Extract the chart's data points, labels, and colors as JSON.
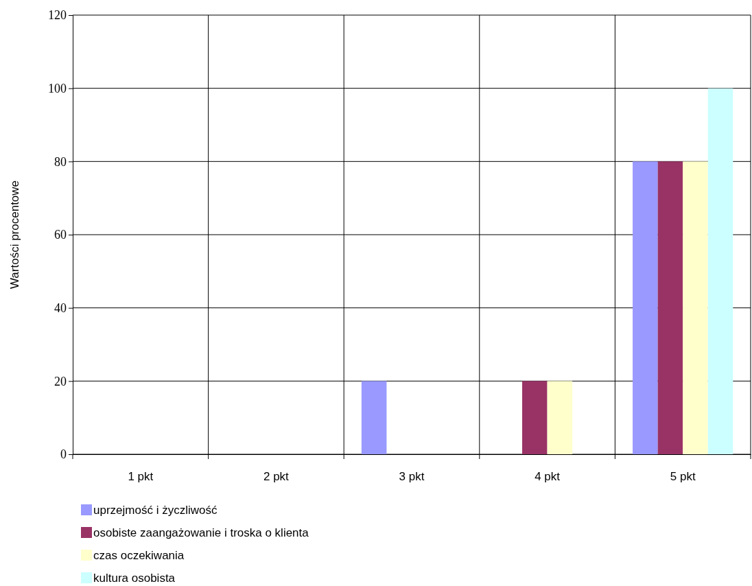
{
  "chart_data": {
    "type": "bar",
    "ylabel": "Wartości procentowe",
    "categories": [
      "1 pkt",
      "2 pkt",
      "3 pkt",
      "4 pkt",
      "5 pkt"
    ],
    "series": [
      {
        "name": "uprzejmość i życzliwość",
        "color": "#9999ff",
        "values": [
          0,
          0,
          20,
          0,
          80
        ]
      },
      {
        "name": "osobiste zaangażowanie i troska o klienta",
        "color": "#993366",
        "values": [
          0,
          0,
          0,
          20,
          80
        ]
      },
      {
        "name": "czas oczekiwania",
        "color": "#ffffcc",
        "values": [
          0,
          0,
          0,
          20,
          80
        ]
      },
      {
        "name": "kultura osobista",
        "color": "#ccffff",
        "values": [
          0,
          0,
          0,
          0,
          100
        ]
      }
    ],
    "ylim": [
      0,
      120
    ],
    "yticks": [
      0,
      20,
      40,
      60,
      80,
      100,
      120
    ],
    "grid": true,
    "legend": "bottom left"
  }
}
